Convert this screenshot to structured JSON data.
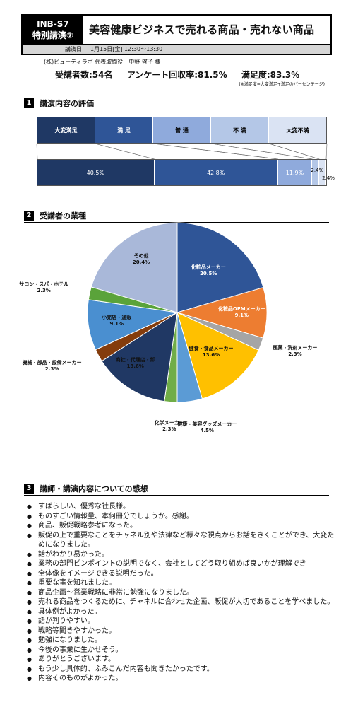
{
  "header": {
    "code": "INB-S7",
    "session": "特別講演⑦",
    "title": "美容健康ビジネスで売れる商品・売れない商品",
    "date_key": "講演日",
    "date_value": "1月15日[金] 12:30〜13:30"
  },
  "speaker": "(株)ビューティラボ 代表取締役　中野 啓子 様",
  "stats": {
    "attendees": "受講者数:54名",
    "response_rate": "アンケート回収率:81.5%",
    "satisfaction": "満足度:83.3%"
  },
  "note": "(※満足度=大変満足+満足のパーセンテージ)",
  "sections": {
    "s1": {
      "num": "1",
      "title": "講演内容の評価"
    },
    "s2": {
      "num": "2",
      "title": "受講者の業種"
    },
    "s3": {
      "num": "3",
      "title": "講師・講演内容についての感想"
    }
  },
  "chart_data": [
    {
      "type": "bar",
      "stacked": true,
      "orientation": "horizontal",
      "categories": [
        "大変満足",
        "満 足",
        "普 通",
        "不 満",
        "大変不満"
      ],
      "values": [
        40.5,
        42.8,
        11.9,
        2.4,
        2.4
      ],
      "value_labels": [
        "40.5%",
        "42.8%",
        "11.9%",
        "2.4%",
        "2.4%"
      ],
      "colors": [
        "#1f3864",
        "#2f5597",
        "#8faadc",
        "#b4c7e7",
        "#dae3f3"
      ],
      "legend_position": "top"
    },
    {
      "type": "pie",
      "slices": [
        {
          "label": "化粧品メーカー",
          "value": 20.5,
          "text": "20.5%",
          "color": "#2f5597"
        },
        {
          "label": "化粧品OEMメーカー",
          "value": 9.1,
          "text": "9.1%",
          "color": "#ed7d31"
        },
        {
          "label": "医薬・洗剤メーカー",
          "value": 2.3,
          "text": "2.3%",
          "color": "#a5a5a5"
        },
        {
          "label": "健食・食品メーカー",
          "value": 13.6,
          "text": "13.6%",
          "color": "#ffc000"
        },
        {
          "label": "健康・美容グッズメーカー",
          "value": 4.5,
          "text": "4.5%",
          "color": "#5b9bd5"
        },
        {
          "label": "化学メーカー",
          "value": 2.3,
          "text": "2.3%",
          "color": "#70ad47"
        },
        {
          "label": "商社・代理店・卸",
          "value": 13.6,
          "text": "13.6%",
          "color": "#203864"
        },
        {
          "label": "機械・部品・設備メーカー",
          "value": 2.3,
          "text": "2.3%",
          "color": "#843c0c"
        },
        {
          "label": "小売店・通販",
          "value": 9.1,
          "text": "9.1%",
          "color": "#4a8fd0"
        },
        {
          "label": "サロン・スパ・ホテル",
          "value": 2.3,
          "text": "2.3%",
          "color": "#5aa33a"
        },
        {
          "label": "その他",
          "value": 20.4,
          "text": "20.4%",
          "color": "#a9b8d9"
        }
      ]
    }
  ],
  "comments": [
    "すばらしい、優秀な社長様。",
    "ものすごい情報量、本何冊分でしょうか。感謝。",
    "商品、販促戦略参考になった。",
    "販促の上で重要なことをチャネル別や法律など様々な視点からお話をきくことができ、大変ためになりました。",
    "話がわかり易かった。",
    "業務の部門ピンポイントの説明でなく、会社としてどう取り組めば良いかが理解でき",
    "全体像をイメージできる説明だった。",
    "重要な事を知れました。",
    "商品企画〜営業戦略に非常に勉強になりました。",
    "売れる商品をつくるために、チャネルに合わせた企画、販促が大切であることを学べました。",
    "具体例がよかった。",
    "話が判りやすい。",
    "戦略等聞きやすかった。",
    "勉強になりました。",
    "今後の事業に生かせそう。",
    "ありがとうございます。",
    "もう少し具体的、ふみこんだ内容も聞きたかったです。",
    "内容そのものがよかった。"
  ]
}
